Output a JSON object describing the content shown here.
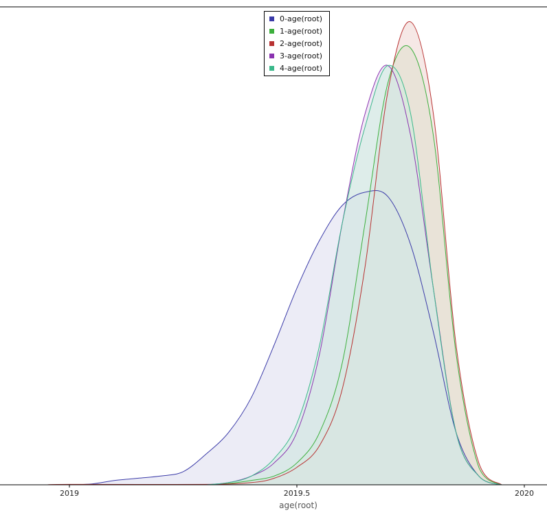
{
  "chart_data": {
    "type": "area",
    "title": "",
    "xlabel": "age(root)",
    "ylabel": "",
    "xlim": [
      2018.98,
      2020.05
    ],
    "ylim": [
      0,
      1.0
    ],
    "grid": false,
    "legend_position": "top-center",
    "x_ticks": [
      {
        "value": 2019,
        "label": "2019"
      },
      {
        "value": 2019.5,
        "label": "2019.5"
      },
      {
        "value": 2020,
        "label": "2020"
      }
    ],
    "series": [
      {
        "name": "0-age(root)",
        "color": "#3a3aa8",
        "fill": "#dcdcef",
        "x": [
          2018.95,
          2019.0,
          2019.05,
          2019.1,
          2019.15,
          2019.2,
          2019.25,
          2019.3,
          2019.35,
          2019.4,
          2019.45,
          2019.5,
          2019.55,
          2019.6,
          2019.65,
          2019.7,
          2019.75,
          2019.8,
          2019.85,
          2019.9,
          2019.95
        ],
        "y": [
          0.0,
          0.0,
          0.002,
          0.01,
          0.015,
          0.02,
          0.03,
          0.07,
          0.12,
          0.2,
          0.32,
          0.45,
          0.56,
          0.64,
          0.67,
          0.66,
          0.55,
          0.35,
          0.12,
          0.02,
          0.0
        ]
      },
      {
        "name": "1-age(root)",
        "color": "#3caf3c",
        "fill": "#ccebc8",
        "x": [
          2019.3,
          2019.35,
          2019.4,
          2019.45,
          2019.5,
          2019.55,
          2019.6,
          2019.65,
          2019.7,
          2019.75,
          2019.8,
          2019.85,
          2019.9,
          2019.95
        ],
        "y": [
          0.0,
          0.003,
          0.01,
          0.02,
          0.05,
          0.12,
          0.28,
          0.6,
          0.92,
          1.0,
          0.8,
          0.3,
          0.04,
          0.0
        ]
      },
      {
        "name": "2-age(root)",
        "color": "#b83232",
        "fill": "#efd6d2",
        "x": [
          2018.95,
          2019.0,
          2019.3,
          2019.4,
          2019.45,
          2019.5,
          2019.55,
          2019.6,
          2019.65,
          2019.7,
          2019.75,
          2019.8,
          2019.85,
          2019.9,
          2019.95
        ],
        "y": [
          0.0,
          0.001,
          0.001,
          0.005,
          0.015,
          0.04,
          0.09,
          0.22,
          0.5,
          0.9,
          1.06,
          0.85,
          0.32,
          0.05,
          0.0
        ]
      },
      {
        "name": "3-age(root)",
        "color": "#8a32b0",
        "fill": "#e6d8ef",
        "x": [
          2019.3,
          2019.35,
          2019.4,
          2019.45,
          2019.5,
          2019.55,
          2019.6,
          2019.65,
          2019.7,
          2019.75,
          2019.8,
          2019.85,
          2019.9,
          2019.95
        ],
        "y": [
          0.0,
          0.005,
          0.02,
          0.05,
          0.12,
          0.3,
          0.6,
          0.85,
          0.96,
          0.8,
          0.45,
          0.12,
          0.02,
          0.0
        ]
      },
      {
        "name": "4-age(root)",
        "color": "#3ab88a",
        "fill": "#cdeee0",
        "x": [
          2019.3,
          2019.35,
          2019.4,
          2019.45,
          2019.5,
          2019.55,
          2019.6,
          2019.65,
          2019.7,
          2019.75,
          2019.8,
          2019.85,
          2019.9,
          2019.95
        ],
        "y": [
          0.0,
          0.005,
          0.02,
          0.06,
          0.14,
          0.32,
          0.6,
          0.82,
          0.96,
          0.85,
          0.45,
          0.12,
          0.02,
          0.0
        ]
      }
    ]
  }
}
